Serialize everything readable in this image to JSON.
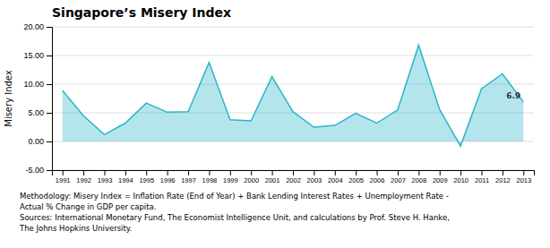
{
  "chart_data": {
    "type": "area",
    "title": "Singapore’s Misery Index",
    "y_label": "Misery Index",
    "x": [
      1991,
      1992,
      1993,
      1994,
      1995,
      1996,
      1997,
      1998,
      1999,
      2000,
      2001,
      2002,
      2003,
      2004,
      2005,
      2006,
      2007,
      2008,
      2009,
      2010,
      2011,
      2012,
      2013
    ],
    "values": [
      8.9,
      4.5,
      1.2,
      3.2,
      6.7,
      5.1,
      5.2,
      13.8,
      3.8,
      3.6,
      11.3,
      5.2,
      2.5,
      2.8,
      4.9,
      3.2,
      5.5,
      16.8,
      5.6,
      -0.8,
      9.2,
      11.8,
      6.9
    ],
    "color": "#2ab5c8",
    "xlim": [
      1990.5,
      2013.5
    ],
    "xticks": [
      1991,
      1992,
      1993,
      1994,
      1995,
      1996,
      1997,
      1998,
      1999,
      2000,
      2001,
      2002,
      2003,
      2004,
      2005,
      2006,
      2007,
      2008,
      2009,
      2010,
      2011,
      2012,
      2013
    ],
    "ylim": [
      -5.0,
      20.0
    ],
    "yticks": [
      {
        "value": -5.0,
        "label": "-5.00"
      },
      {
        "value": 0.0,
        "label": "0.00"
      },
      {
        "value": 5.0,
        "label": "5.00"
      },
      {
        "value": 10.0,
        "label": "10.00"
      },
      {
        "value": 15.0,
        "label": "15.00"
      },
      {
        "value": 20.0,
        "label": "20.00"
      }
    ],
    "grid": true,
    "annotations": [
      {
        "text": "6.9",
        "x": 2013,
        "y": 6.9
      }
    ],
    "footnotes": [
      "Methodology: Misery Index = Inflation Rate (End of Year) + Bank Lending Interest Rates + Unemployment Rate -",
      "Actual % Change in GDP per capita.",
      "Sources: International Monetary Fund, The Economist Intelligence Unit, and calculations by Prof. Steve H. Hanke,",
      "The Johns Hopkins University."
    ]
  }
}
